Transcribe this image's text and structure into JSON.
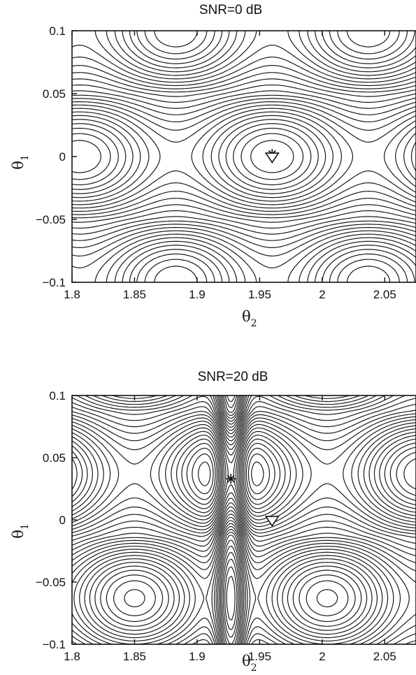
{
  "chart_data": [
    {
      "type": "contour",
      "title": "SNR=0 dB",
      "xlabel": "θ",
      "xlabel_subscript": "2",
      "ylabel": "θ",
      "ylabel_subscript": "1",
      "xlim": [
        1.8,
        2.075
      ],
      "ylim": [
        -0.1,
        0.1
      ],
      "xticks": [
        1.8,
        1.85,
        1.9,
        1.95,
        2,
        2.05
      ],
      "xtick_labels": [
        "1.8",
        "1.85",
        "1.9",
        "1.95",
        "2",
        "2.05"
      ],
      "yticks": [
        -0.1,
        -0.05,
        0,
        0.05,
        0.1
      ],
      "ytick_labels": [
        "−0.1",
        "−0.05",
        "0",
        "0.05",
        "0.1"
      ],
      "markers": [
        {
          "symbol": "star",
          "x": 1.96,
          "y": 0.002
        },
        {
          "symbol": "triangle-down",
          "x": 1.96,
          "y": 0.0
        }
      ],
      "ridge": {
        "x": 1.96,
        "y": 0.0
      }
    },
    {
      "type": "contour",
      "title": "SNR=20 dB",
      "xlabel": "θ",
      "xlabel_subscript": "2",
      "ylabel": "θ",
      "ylabel_subscript": "1",
      "xlim": [
        1.8,
        2.075
      ],
      "ylim": [
        -0.1,
        0.1
      ],
      "xticks": [
        1.8,
        1.85,
        1.9,
        1.95,
        2,
        2.05
      ],
      "xtick_labels": [
        "1.8",
        "1.85",
        "1.9",
        "1.95",
        "2",
        "2.05"
      ],
      "yticks": [
        -0.1,
        -0.05,
        0,
        0.05,
        0.1
      ],
      "ytick_labels": [
        "−0.1",
        "−0.05",
        "0",
        "0.05",
        "0.1"
      ],
      "markers": [
        {
          "symbol": "star",
          "x": 1.927,
          "y": 0.033
        },
        {
          "symbol": "triangle-down",
          "x": 1.96,
          "y": 0.0
        }
      ],
      "ridge": {
        "x": 1.927,
        "y": 0.037
      }
    }
  ]
}
